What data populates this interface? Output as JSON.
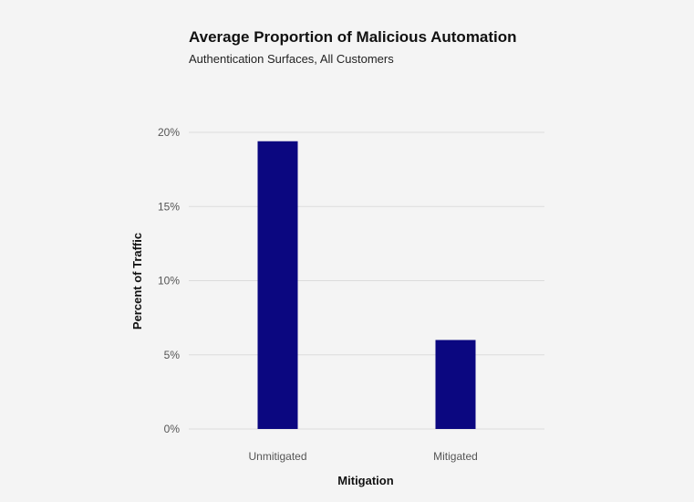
{
  "chart_data": {
    "type": "bar",
    "title": "Average Proportion of Malicious Automation",
    "subtitle": "Authentication Surfaces, All Customers",
    "xlabel": "Mitigation",
    "ylabel": "Percent of Traffic",
    "categories": [
      "Unmitigated",
      "Mitigated"
    ],
    "values": [
      19.4,
      6.0
    ],
    "ylim": [
      0,
      20
    ],
    "yticks": [
      0,
      5,
      10,
      15,
      20
    ],
    "ytick_labels": [
      "0%",
      "5%",
      "10%",
      "15%",
      "20%"
    ],
    "grid": true,
    "bar_color": "#0b0780"
  }
}
